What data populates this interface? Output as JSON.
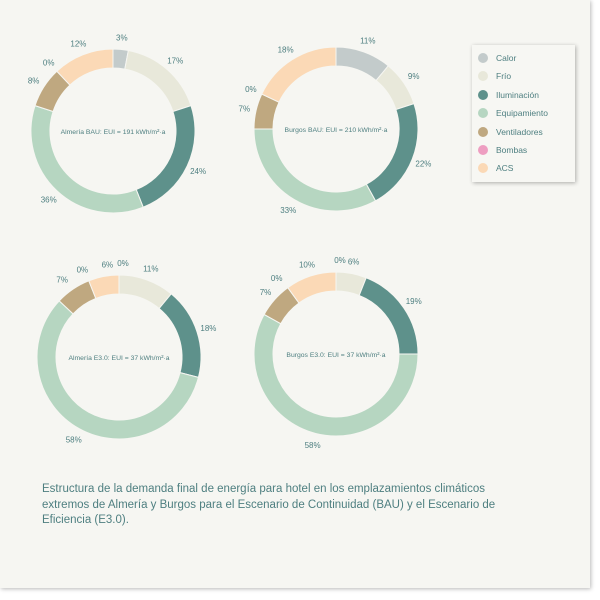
{
  "colors": {
    "Calor": "#c3cbcb",
    "Frío": "#e8e8da",
    "Iluminación": "#5e918b",
    "Equipamiento": "#b6d6c1",
    "Ventiladores": "#bfa880",
    "Bombas": "#ee9ec1",
    "ACS": "#fbd9b6"
  },
  "legend": {
    "items": [
      {
        "label": "Calor",
        "color": "#c3cbcb"
      },
      {
        "label": "Frío",
        "color": "#e8e8da"
      },
      {
        "label": "Iluminación",
        "color": "#5e918b"
      },
      {
        "label": "Equipamiento",
        "color": "#b6d6c1"
      },
      {
        "label": "Ventiladores",
        "color": "#bfa880"
      },
      {
        "label": "Bombas",
        "color": "#ee9ec1"
      },
      {
        "label": "ACS",
        "color": "#fbd9b6"
      }
    ]
  },
  "chart_data": [
    {
      "type": "pie",
      "title": "Almería BAU: EUI = 191 kWh/m²·a",
      "categories": [
        "Calor",
        "Frío",
        "Iluminación",
        "Equipamiento",
        "Ventiladores",
        "Bombas",
        "ACS"
      ],
      "values": [
        3,
        17,
        24,
        36,
        8,
        0,
        12
      ]
    },
    {
      "type": "pie",
      "title": "Burgos BAU: EUI = 210 kWh/m²·a",
      "categories": [
        "Calor",
        "Frío",
        "Iluminación",
        "Equipamiento",
        "Ventiladores",
        "Bombas",
        "ACS"
      ],
      "values": [
        11,
        9,
        22,
        33,
        7,
        0,
        18
      ]
    },
    {
      "type": "pie",
      "title": "Almería E3.0: EUI = 37 kWh/m²·a",
      "categories": [
        "Calor",
        "Frío",
        "Iluminación",
        "Equipamiento",
        "Ventiladores",
        "Bombas",
        "ACS"
      ],
      "values": [
        0,
        11,
        18,
        58,
        7,
        0,
        6
      ]
    },
    {
      "type": "pie",
      "title": "Burgos E3.0: EUI = 37 kWh/m²·a",
      "categories": [
        "Calor",
        "Frío",
        "Iluminación",
        "Equipamiento",
        "Ventiladores",
        "Bombas",
        "ACS"
      ],
      "values": [
        0,
        6,
        19,
        58,
        7,
        0,
        10
      ]
    }
  ],
  "caption": "Estructura de la demanda final de energía para hotel en los emplazamientos climáticos extremos de Almería y Burgos para el Escenario de Continuidad (BAU) y el Escenario de Eficiencia (E3.0)."
}
